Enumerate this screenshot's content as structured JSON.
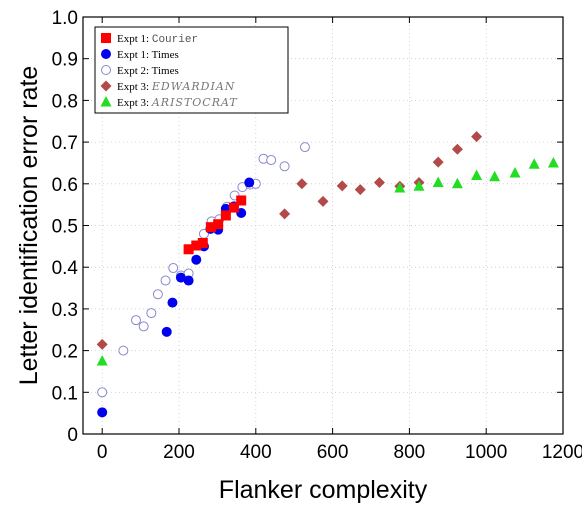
{
  "chart_data": {
    "type": "scatter",
    "title": "",
    "xlabel": "Flanker complexity",
    "ylabel": "Letter identification error rate",
    "xlim": [
      -50,
      1200
    ],
    "ylim": [
      0,
      1.0
    ],
    "xticks": [
      0,
      200,
      400,
      600,
      800,
      1000,
      1200
    ],
    "xtick_labels": [
      "0",
      "200",
      "400",
      "600",
      "800",
      "1000",
      "1200"
    ],
    "yticks": [
      0,
      0.1,
      0.2,
      0.3,
      0.4,
      0.5,
      0.6,
      0.7,
      0.8,
      0.9,
      1.0
    ],
    "ytick_labels": [
      "0",
      "0.1",
      "0.2",
      "0.3",
      "0.4",
      "0.5",
      "0.6",
      "0.7",
      "0.8",
      "0.9",
      "1.0"
    ],
    "grid": true,
    "legend_position": "top-left",
    "series": [
      {
        "name": "Expt 1: Courier",
        "legend_prefix": "Expt 1: ",
        "legend_font": "Courier",
        "marker": "square",
        "color": "#ff0000",
        "x": [
          225,
          245,
          262,
          283,
          302,
          322,
          343,
          362
        ],
        "y": [
          0.443,
          0.452,
          0.458,
          0.496,
          0.503,
          0.524,
          0.543,
          0.56
        ]
      },
      {
        "name": "Expt 1: Times",
        "legend_prefix": "Expt 1: ",
        "legend_font": "Times",
        "marker": "circle-filled",
        "color": "#0000ee",
        "x": [
          0,
          168,
          183,
          205,
          225,
          245,
          265,
          282,
          302,
          322,
          343,
          362,
          383
        ],
        "y": [
          0.052,
          0.245,
          0.315,
          0.375,
          0.368,
          0.418,
          0.45,
          0.492,
          0.49,
          0.54,
          0.546,
          0.53,
          0.603
        ]
      },
      {
        "name": "Expt 2: Times",
        "legend_prefix": "Expt 2: ",
        "legend_font": "Times",
        "marker": "circle-open",
        "color": "#8888cc",
        "x": [
          0,
          55,
          88,
          108,
          128,
          145,
          165,
          185,
          205,
          225,
          265,
          285,
          305,
          325,
          345,
          365,
          385,
          400,
          420,
          440,
          475,
          528
        ],
        "y": [
          0.1,
          0.2,
          0.273,
          0.258,
          0.29,
          0.335,
          0.368,
          0.398,
          0.38,
          0.385,
          0.48,
          0.51,
          0.515,
          0.545,
          0.572,
          0.592,
          0.598,
          0.6,
          0.66,
          0.657,
          0.642,
          0.688
        ]
      },
      {
        "name": "Expt 3: Edwardian",
        "legend_prefix": "Expt 3: ",
        "legend_font": "EDWARDIAN",
        "marker": "diamond",
        "color": "#b34a4a",
        "x": [
          0,
          475,
          520,
          575,
          625,
          672,
          722,
          775,
          825,
          875,
          925,
          975
        ],
        "y": [
          0.215,
          0.528,
          0.6,
          0.558,
          0.595,
          0.586,
          0.603,
          0.594,
          0.603,
          0.652,
          0.683,
          0.713
        ]
      },
      {
        "name": "Expt 3: Aristocrat",
        "legend_prefix": "Expt 3: ",
        "legend_font": "ARISTOCRAT",
        "marker": "triangle",
        "color": "#22dd22",
        "x": [
          0,
          775,
          825,
          875,
          925,
          975,
          1022,
          1075,
          1125,
          1175
        ],
        "y": [
          0.175,
          0.59,
          0.594,
          0.603,
          0.6,
          0.62,
          0.617,
          0.626,
          0.647,
          0.65
        ]
      }
    ]
  }
}
